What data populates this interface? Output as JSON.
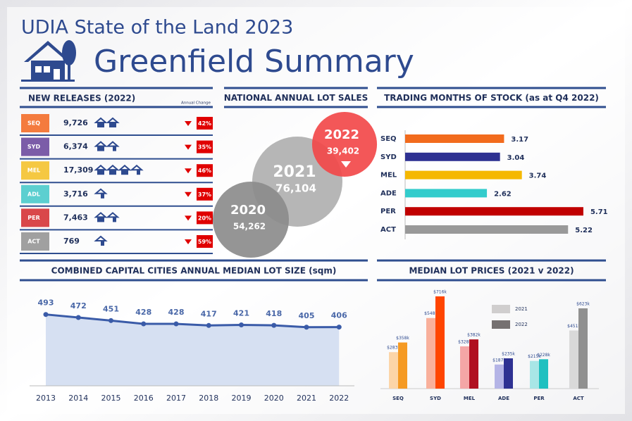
{
  "header": {
    "title": "UDIA State of the Land 2023",
    "subtitle": "Greenfield Summary"
  },
  "new_releases": {
    "title": "NEW RELEASES (2022)",
    "change_header": "Annual Change",
    "rows": [
      {
        "region": "SEQ",
        "color": "#f47b3e",
        "count": "9,726",
        "change": "42%"
      },
      {
        "region": "SYD",
        "color": "#7b5ca8",
        "count": "6,374",
        "change": "35%"
      },
      {
        "region": "MEL",
        "color": "#f5c842",
        "count": "17,309",
        "change": "46%"
      },
      {
        "region": "ADL",
        "color": "#5ccfd0",
        "count": "3,716",
        "change": "37%"
      },
      {
        "region": "PER",
        "color": "#d9474a",
        "count": "7,463",
        "change": "20%"
      },
      {
        "region": "ACT",
        "color": "#a0a0a0",
        "count": "769",
        "change": "59%"
      }
    ]
  },
  "chart_data": [
    {
      "type": "bubble",
      "title": "NATIONAL ANNUAL LOT SALES",
      "categories": [
        "2020",
        "2021",
        "2022"
      ],
      "values": [
        54262,
        76104,
        39402
      ],
      "value_labels": [
        "54,262",
        "76,104",
        "39,402"
      ],
      "colors": [
        "#8c8c8c",
        "#b0b0b0",
        "#f2494a"
      ]
    },
    {
      "type": "bar",
      "horizontal": true,
      "title": "TRADING MONTHS OF STOCK (as at Q4 2022)",
      "categories": [
        "SEQ",
        "SYD",
        "MEL",
        "ADE",
        "PER",
        "ACT"
      ],
      "values": [
        3.17,
        3.04,
        3.74,
        2.62,
        5.71,
        5.22
      ],
      "colors": [
        "#f26b1d",
        "#2e3192",
        "#f5b800",
        "#33cccc",
        "#c00000",
        "#999999"
      ]
    },
    {
      "type": "area",
      "title": "COMBINED CAPITAL CITIES ANNUAL MEDIAN LOT SIZE (sqm)",
      "categories": [
        "2013",
        "2014",
        "2015",
        "2016",
        "2017",
        "2018",
        "2019",
        "2020",
        "2021",
        "2022"
      ],
      "values": [
        493,
        472,
        451,
        428,
        428,
        417,
        421,
        418,
        405,
        406
      ],
      "color": "#3a5ba8",
      "fill": "#d6e0f2"
    },
    {
      "type": "bar",
      "title": "MEDIAN LOT PRICES (2021 v 2022)",
      "categories": [
        "SEQ",
        "SYD",
        "MEL",
        "ADE",
        "PER",
        "ACT"
      ],
      "series": [
        {
          "name": "2021",
          "color": "#d0cece",
          "bar_colors": [
            "#fcd5a8",
            "#f9b09b",
            "#f4a6a6",
            "#b4b4e6",
            "#a8e6e6",
            "#d9d9d9"
          ],
          "values": [
            283,
            548,
            328,
            187,
            215,
            451
          ],
          "value_labels": [
            "$283k",
            "$548k",
            "$328k",
            "$187k",
            "$215k",
            "$451k"
          ]
        },
        {
          "name": "2022",
          "color": "#767171",
          "bar_colors": [
            "#f59a23",
            "#ff4500",
            "#b01020",
            "#2e3192",
            "#20c0c0",
            "#909090"
          ],
          "values": [
            358,
            716,
            382,
            235,
            228,
            623
          ],
          "value_labels": [
            "$358k",
            "$716k",
            "$382k",
            "$235k",
            "$228k",
            "$623k"
          ]
        }
      ]
    }
  ]
}
